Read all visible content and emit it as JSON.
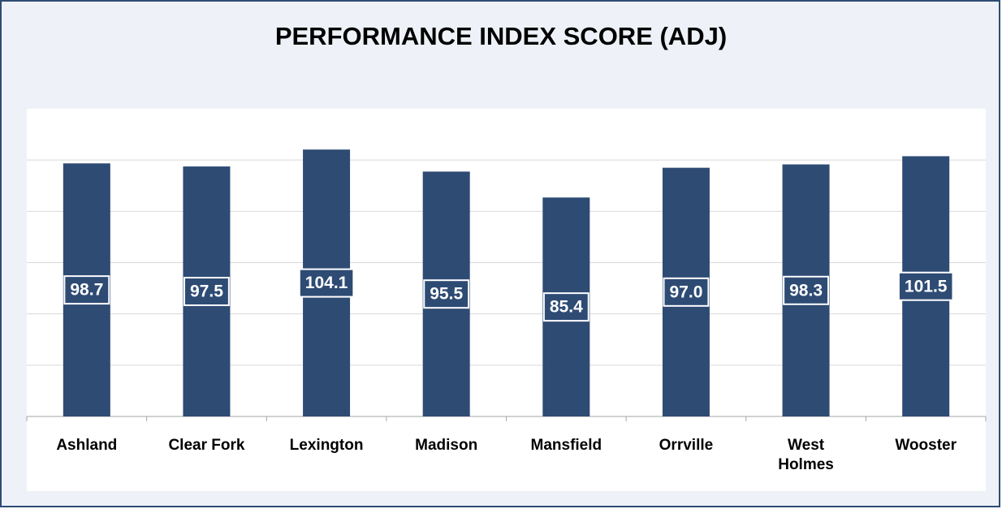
{
  "chart_data": {
    "type": "bar",
    "title": "PERFORMANCE INDEX SCORE (ADJ)",
    "categories": [
      "Ashland",
      "Clear Fork",
      "Lexington",
      "Madison",
      "Mansfield",
      "Orrville",
      "West Holmes",
      "Wooster"
    ],
    "values": [
      98.7,
      97.5,
      104.1,
      95.5,
      85.4,
      97.0,
      98.3,
      101.5
    ],
    "value_labels": [
      "98.7",
      "97.5",
      "104.1",
      "95.5",
      "85.4",
      "97.0",
      "98.3",
      "101.5"
    ],
    "color": "#2e4b74",
    "ylim": [
      0,
      120
    ],
    "yticks": [
      0,
      20,
      40,
      60,
      80,
      100
    ],
    "grid": true
  }
}
